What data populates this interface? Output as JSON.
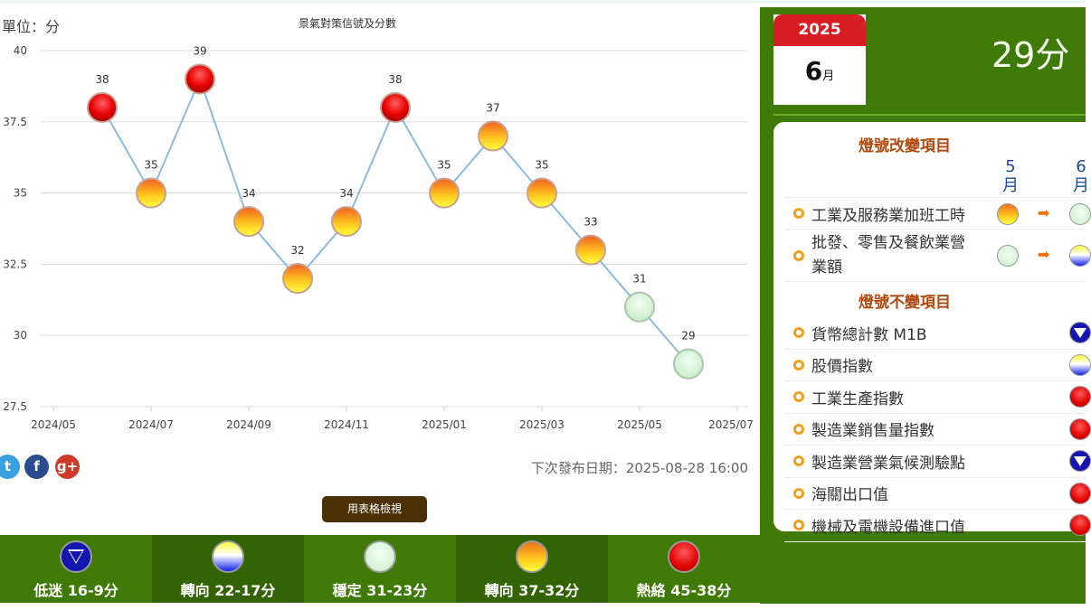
{
  "unit_label": "單位：分",
  "chart_data": {
    "type": "line",
    "title": "景氣對策信號及分數",
    "x": [
      "2024/06",
      "2024/07",
      "2024/08",
      "2024/09",
      "2024/10",
      "2024/11",
      "2024/12",
      "2025/01",
      "2025/02",
      "2025/03",
      "2025/04",
      "2025/05",
      "2025/06"
    ],
    "values": [
      38,
      35,
      39,
      34,
      32,
      34,
      38,
      35,
      37,
      35,
      33,
      31,
      29
    ],
    "signals": [
      "red",
      "yellow-red",
      "red",
      "yellow-red",
      "yellow-red",
      "yellow-red",
      "red",
      "yellow-red",
      "yellow-red",
      "yellow-red",
      "yellow-red",
      "green",
      "green"
    ],
    "x_ticks": [
      "2024/05",
      "2024/07",
      "2024/09",
      "2024/11",
      "2025/01",
      "2025/03",
      "2025/05",
      "2025/07"
    ],
    "y_ticks": [
      "40",
      "37.5",
      "35",
      "32.5",
      "30",
      "27.5"
    ],
    "ylim": [
      27.5,
      40
    ],
    "grid": true,
    "line_color": "#8bbbe0"
  },
  "social": [
    "twitter",
    "facebook",
    "google-plus"
  ],
  "social_glyphs": [
    "t",
    "f",
    "g+"
  ],
  "next_release": "下次發布日期：2025-08-28 16:00",
  "table_button": "用表格檢視",
  "legend": [
    {
      "label": "低迷 16-9分",
      "signal": "blue"
    },
    {
      "label": "轉向 22-17分",
      "signal": "yellow-blue"
    },
    {
      "label": "穩定 31-23分",
      "signal": "green"
    },
    {
      "label": "轉向 37-32分",
      "signal": "yellow-red"
    },
    {
      "label": "熱絡 45-38分",
      "signal": "red"
    }
  ],
  "panel": {
    "year": "2025",
    "month": "6",
    "month_unit": "月",
    "score": "29分",
    "changed_title": "燈號改變項目",
    "prev_month": "5",
    "cur_month": "6",
    "month_char": "月",
    "changed": [
      {
        "label": "工業及服務業加班工時",
        "from": "yellow-red",
        "to": "green"
      },
      {
        "label": "批發、零售及餐飲業營業額",
        "from": "green",
        "to": "yellow-blue"
      }
    ],
    "unchanged_title": "燈號不變項目",
    "unchanged": [
      {
        "label": "貨幣總計數 M1B",
        "signal": "blue"
      },
      {
        "label": "股價指數",
        "signal": "yellow-blue"
      },
      {
        "label": "工業生產指數",
        "signal": "red"
      },
      {
        "label": "製造業銷售量指數",
        "signal": "red"
      },
      {
        "label": "製造業營業氣候測驗點",
        "signal": "blue"
      },
      {
        "label": "海關出口值",
        "signal": "red"
      },
      {
        "label": "機械及電機設備進口值",
        "signal": "red"
      }
    ]
  }
}
